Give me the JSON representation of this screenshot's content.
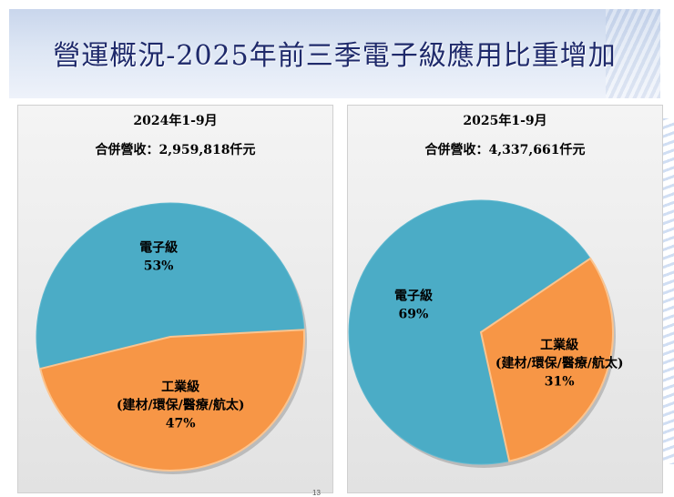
{
  "title": "營運概況-2025年前三季電子級應用比重增加",
  "page_number": "13",
  "colors": {
    "electronic": "#4bacc6",
    "industrial": "#f79646",
    "industrial_edge": "#fbc48f",
    "title_text": "#1f2a6b"
  },
  "chart_data": [
    {
      "type": "pie",
      "title": "2024年1-9月",
      "subtitle": "合併營收：2,959,818仟元",
      "slices": [
        {
          "label": "電子級",
          "value": 53,
          "value_label": "53%"
        },
        {
          "label": "工業級",
          "sublabel": "(建材/環保/醫療/航太)",
          "value": 47,
          "value_label": "47%"
        }
      ]
    },
    {
      "type": "pie",
      "title": "2025年1-9月",
      "subtitle": "合併營收：4,337,661仟元",
      "slices": [
        {
          "label": "電子級",
          "value": 69,
          "value_label": "69%"
        },
        {
          "label": "工業級",
          "sublabel": "(建材/環保/醫療/航太)",
          "value": 31,
          "value_label": "31%"
        }
      ]
    }
  ]
}
